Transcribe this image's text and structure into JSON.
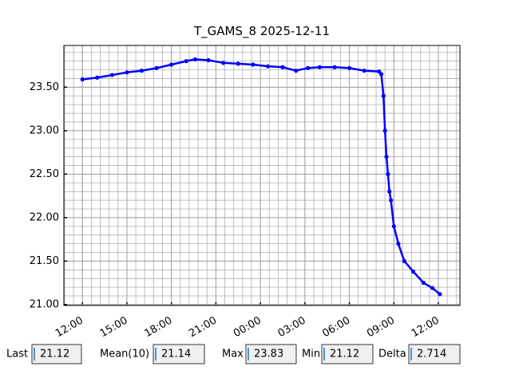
{
  "chart_data": {
    "type": "line",
    "title": "T_GAMS_8 2025-12-11",
    "x": [
      0,
      1,
      2,
      3,
      4,
      5,
      6,
      7,
      7.6,
      8.5,
      9.5,
      10.5,
      11.5,
      12.5,
      13.5,
      14.4,
      15.2,
      16,
      17,
      18,
      19,
      20,
      20.15,
      20.3,
      20.4,
      20.5,
      20.6,
      20.7,
      20.8,
      21.0,
      21.3,
      21.7,
      22.3,
      23.0,
      23.6,
      24.1
    ],
    "series": [
      {
        "name": "T_GAMS_8",
        "color": "#0000ff",
        "values": [
          23.59,
          23.61,
          23.64,
          23.67,
          23.69,
          23.72,
          23.76,
          23.8,
          23.82,
          23.81,
          23.78,
          23.77,
          23.76,
          23.74,
          23.73,
          23.69,
          23.72,
          23.73,
          23.73,
          23.72,
          23.69,
          23.68,
          23.65,
          23.4,
          23.0,
          22.7,
          22.5,
          22.3,
          22.2,
          21.9,
          21.7,
          21.5,
          21.38,
          21.25,
          21.19,
          21.12
        ]
      }
    ],
    "xlim": [
      -1.25,
      25.45
    ],
    "ylim": [
      20.99,
      23.98
    ],
    "xticks": [
      {
        "value": 0,
        "label": "12:00"
      },
      {
        "value": 3,
        "label": "15:00"
      },
      {
        "value": 6,
        "label": "18:00"
      },
      {
        "value": 9,
        "label": "21:00"
      },
      {
        "value": 12,
        "label": "00:00"
      },
      {
        "value": 15,
        "label": "03:00"
      },
      {
        "value": 18,
        "label": "06:00"
      },
      {
        "value": 21,
        "label": "09:00"
      },
      {
        "value": 24,
        "label": "12:00"
      }
    ],
    "yticks": [
      {
        "value": 21,
        "label": "21.00"
      },
      {
        "value": 21.5,
        "label": "21.50"
      },
      {
        "value": 22,
        "label": "22.00"
      },
      {
        "value": 22.5,
        "label": "22.50"
      },
      {
        "value": 23,
        "label": "23.00"
      },
      {
        "value": 23.5,
        "label": "23.50"
      }
    ],
    "grid": true,
    "minor_grid": true
  },
  "stats": [
    {
      "label": "Last",
      "value": 21.12
    },
    {
      "label": "Mean(10)",
      "value": 21.14
    },
    {
      "label": "Max",
      "value": 23.83
    },
    {
      "label": "Min",
      "value": 21.12
    },
    {
      "label": "Delta",
      "value": 2.714
    }
  ]
}
